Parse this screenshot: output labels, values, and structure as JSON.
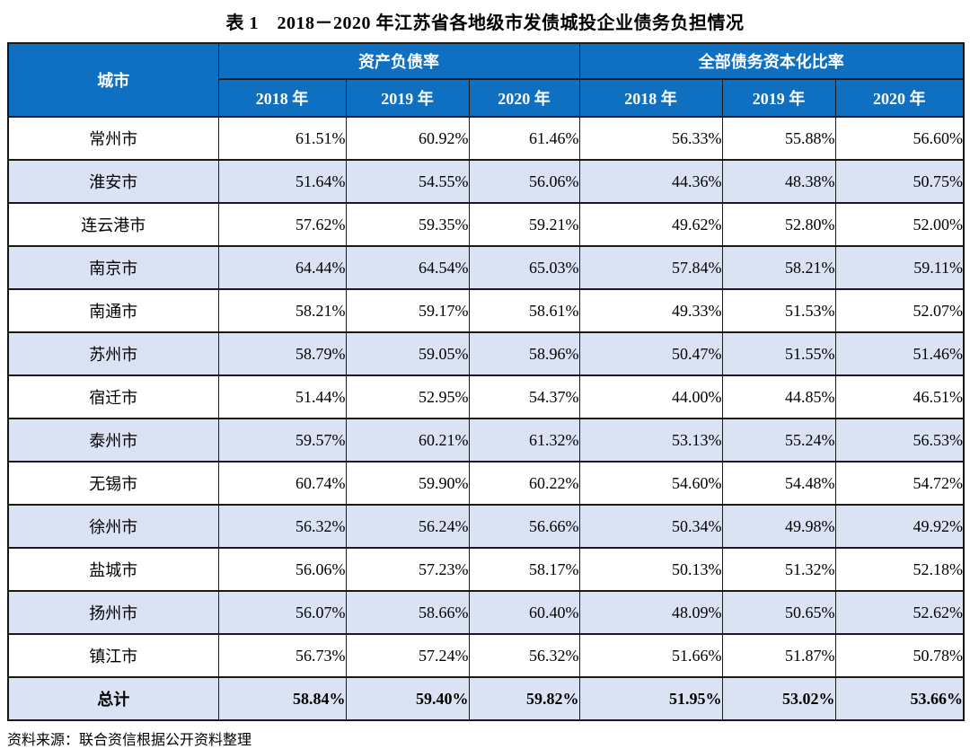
{
  "title": "表 1　2018－2020 年江苏省各地级市发债城投企业债务负担情况",
  "source": "资料来源：联合资信根据公开资料整理",
  "colors": {
    "header_bg": "#0f70c2",
    "header_text": "#ffffff",
    "alt_row_bg": "#d9e3f3",
    "border": "#1a1a1a"
  },
  "table": {
    "city_header": "城市",
    "group_headers": [
      "资产负债率",
      "全部债务资本化比率"
    ],
    "year_headers": [
      "2018 年",
      "2019 年",
      "2020 年",
      "2018 年",
      "2019 年",
      "2020 年"
    ],
    "rows": [
      {
        "city": "常州市",
        "values": [
          "61.51%",
          "60.92%",
          "61.46%",
          "56.33%",
          "55.88%",
          "56.60%"
        ]
      },
      {
        "city": "淮安市",
        "values": [
          "51.64%",
          "54.55%",
          "56.06%",
          "44.36%",
          "48.38%",
          "50.75%"
        ]
      },
      {
        "city": "连云港市",
        "values": [
          "57.62%",
          "59.35%",
          "59.21%",
          "49.62%",
          "52.80%",
          "52.00%"
        ]
      },
      {
        "city": "南京市",
        "values": [
          "64.44%",
          "64.54%",
          "65.03%",
          "57.84%",
          "58.21%",
          "59.11%"
        ]
      },
      {
        "city": "南通市",
        "values": [
          "58.21%",
          "59.17%",
          "58.61%",
          "49.33%",
          "51.53%",
          "52.07%"
        ]
      },
      {
        "city": "苏州市",
        "values": [
          "58.79%",
          "59.05%",
          "58.96%",
          "50.47%",
          "51.55%",
          "51.46%"
        ]
      },
      {
        "city": "宿迁市",
        "values": [
          "51.44%",
          "52.95%",
          "54.37%",
          "44.00%",
          "44.85%",
          "46.51%"
        ]
      },
      {
        "city": "泰州市",
        "values": [
          "59.57%",
          "60.21%",
          "61.32%",
          "53.13%",
          "55.24%",
          "56.53%"
        ]
      },
      {
        "city": "无锡市",
        "values": [
          "60.74%",
          "59.90%",
          "60.22%",
          "54.60%",
          "54.48%",
          "54.72%"
        ]
      },
      {
        "city": "徐州市",
        "values": [
          "56.32%",
          "56.24%",
          "56.66%",
          "50.34%",
          "49.98%",
          "49.92%"
        ]
      },
      {
        "city": "盐城市",
        "values": [
          "56.06%",
          "57.23%",
          "58.17%",
          "50.13%",
          "51.32%",
          "52.18%"
        ]
      },
      {
        "city": "扬州市",
        "values": [
          "56.07%",
          "58.66%",
          "60.40%",
          "48.09%",
          "50.65%",
          "52.62%"
        ]
      },
      {
        "city": "镇江市",
        "values": [
          "56.73%",
          "57.24%",
          "56.32%",
          "51.66%",
          "51.87%",
          "50.78%"
        ]
      }
    ],
    "total": {
      "label": "总计",
      "values": [
        "58.84%",
        "59.40%",
        "59.82%",
        "51.95%",
        "53.02%",
        "53.66%"
      ]
    }
  },
  "chart_data": {
    "type": "table",
    "title": "表 1　2018－2020 年江苏省各地级市发债城投企业债务负担情况",
    "column_groups": [
      "资产负债率",
      "全部债务资本化比率"
    ],
    "columns": [
      "城市",
      "资产负债率 2018 年",
      "资产负债率 2019 年",
      "资产负债率 2020 年",
      "全部债务资本化比率 2018 年",
      "全部债务资本化比率 2019 年",
      "全部债务资本化比率 2020 年"
    ],
    "rows": [
      [
        "常州市",
        61.51,
        60.92,
        61.46,
        56.33,
        55.88,
        56.6
      ],
      [
        "淮安市",
        51.64,
        54.55,
        56.06,
        44.36,
        48.38,
        50.75
      ],
      [
        "连云港市",
        57.62,
        59.35,
        59.21,
        49.62,
        52.8,
        52.0
      ],
      [
        "南京市",
        64.44,
        64.54,
        65.03,
        57.84,
        58.21,
        59.11
      ],
      [
        "南通市",
        58.21,
        59.17,
        58.61,
        49.33,
        51.53,
        52.07
      ],
      [
        "苏州市",
        58.79,
        59.05,
        58.96,
        50.47,
        51.55,
        51.46
      ],
      [
        "宿迁市",
        51.44,
        52.95,
        54.37,
        44.0,
        44.85,
        46.51
      ],
      [
        "泰州市",
        59.57,
        60.21,
        61.32,
        53.13,
        55.24,
        56.53
      ],
      [
        "无锡市",
        60.74,
        59.9,
        60.22,
        54.6,
        54.48,
        54.72
      ],
      [
        "徐州市",
        56.32,
        56.24,
        56.66,
        50.34,
        49.98,
        49.92
      ],
      [
        "盐城市",
        56.06,
        57.23,
        58.17,
        50.13,
        51.32,
        52.18
      ],
      [
        "扬州市",
        56.07,
        58.66,
        60.4,
        48.09,
        50.65,
        52.62
      ],
      [
        "镇江市",
        56.73,
        57.24,
        56.32,
        51.66,
        51.87,
        50.78
      ],
      [
        "总计",
        58.84,
        59.4,
        59.82,
        51.95,
        53.02,
        53.66
      ]
    ],
    "unit": "%",
    "source_note": "资料来源：联合资信根据公开资料整理"
  }
}
